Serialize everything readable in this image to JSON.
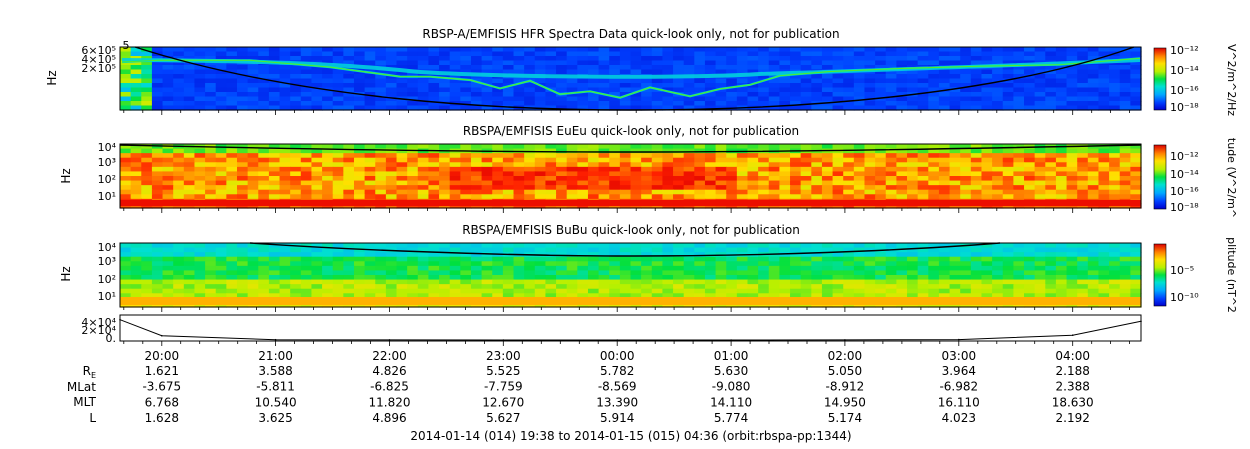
{
  "colors": {
    "spec_stops": [
      "#0000cc",
      "#0040ff",
      "#00a8ff",
      "#00e0d0",
      "#00e040",
      "#b8f000",
      "#ffe000",
      "#ff8000",
      "#ff2000",
      "#dd0000"
    ],
    "ink": "#000000"
  },
  "chart_data": [
    {
      "type": "heatmap",
      "title": "RBSP-A/EMFISIS  HFR Spectra Data quick-look only, not for publication",
      "ylabel": "Hz",
      "yticks": [
        "6×10⁵",
        "4×10⁵",
        "2×10⁵"
      ],
      "ylabel_extra_tick": "5",
      "colorbar_label": "V^2/m^2/Hz",
      "colorbar_ticks": [
        "10⁻¹²",
        "10⁻¹⁴",
        "10⁻¹⁶",
        "10⁻¹⁸"
      ],
      "background_level": 0.08,
      "line_color": "#000000"
    },
    {
      "type": "heatmap",
      "title": "RBSPA/EMFISIS  EuEu quick-look only, not for publication",
      "ylabel": "Hz",
      "yticks": [
        "10⁴",
        "10³",
        "10²",
        "10¹"
      ],
      "colorbar_label": "tude (V^2/m^",
      "colorbar_ticks": [
        "10⁻¹²",
        "10⁻¹⁴",
        "10⁻¹⁶",
        "10⁻¹⁸"
      ],
      "background_level": 0.72
    },
    {
      "type": "heatmap",
      "title": "RBSPA/EMFISIS  BuBu quick-look only, not for publication",
      "ylabel": "Hz",
      "yticks": [
        "10⁴",
        "10³",
        "10²",
        "10¹"
      ],
      "colorbar_label": "plitude (nT^2",
      "colorbar_ticks": [
        "10⁻⁵",
        "10⁻¹⁰"
      ],
      "background_level": 0.4
    },
    {
      "type": "line",
      "ylabel": "",
      "yticks": [
        "4×10⁴",
        "2×10⁴",
        "0."
      ],
      "x": [
        "19:38",
        "20:00",
        "21:00",
        "22:00",
        "23:00",
        "00:00",
        "01:00",
        "02:00",
        "03:00",
        "04:00",
        "04:36"
      ],
      "series": [
        {
          "values": [
            38000,
            8000,
            500,
            100,
            50,
            40,
            50,
            100,
            800,
            9000,
            35000
          ]
        }
      ]
    }
  ],
  "time_axis": {
    "labels": [
      "20:00",
      "21:00",
      "22:00",
      "23:00",
      "00:00",
      "01:00",
      "02:00",
      "03:00",
      "04:00"
    ],
    "rows": [
      {
        "label": "R",
        "subscript": "E",
        "values": [
          "1.621",
          "3.588",
          "4.826",
          "5.525",
          "5.782",
          "5.630",
          "5.050",
          "3.964",
          "2.188"
        ]
      },
      {
        "label": "MLat",
        "values": [
          "-3.675",
          "-5.811",
          "-6.825",
          "-7.759",
          "-8.569",
          "-9.080",
          "-8.912",
          "-6.982",
          "2.388"
        ]
      },
      {
        "label": "MLT",
        "values": [
          "6.768",
          "10.540",
          "11.820",
          "12.670",
          "13.390",
          "14.110",
          "14.950",
          "16.110",
          "18.630"
        ]
      },
      {
        "label": "L",
        "values": [
          "1.628",
          "3.625",
          "4.896",
          "5.627",
          "5.914",
          "5.774",
          "5.174",
          "4.023",
          "2.192"
        ]
      }
    ],
    "footer": "2014-01-14 (014) 19:38 to 2014-01-15 (015) 04:36 (orbit:rbspa-pp:1344)"
  }
}
